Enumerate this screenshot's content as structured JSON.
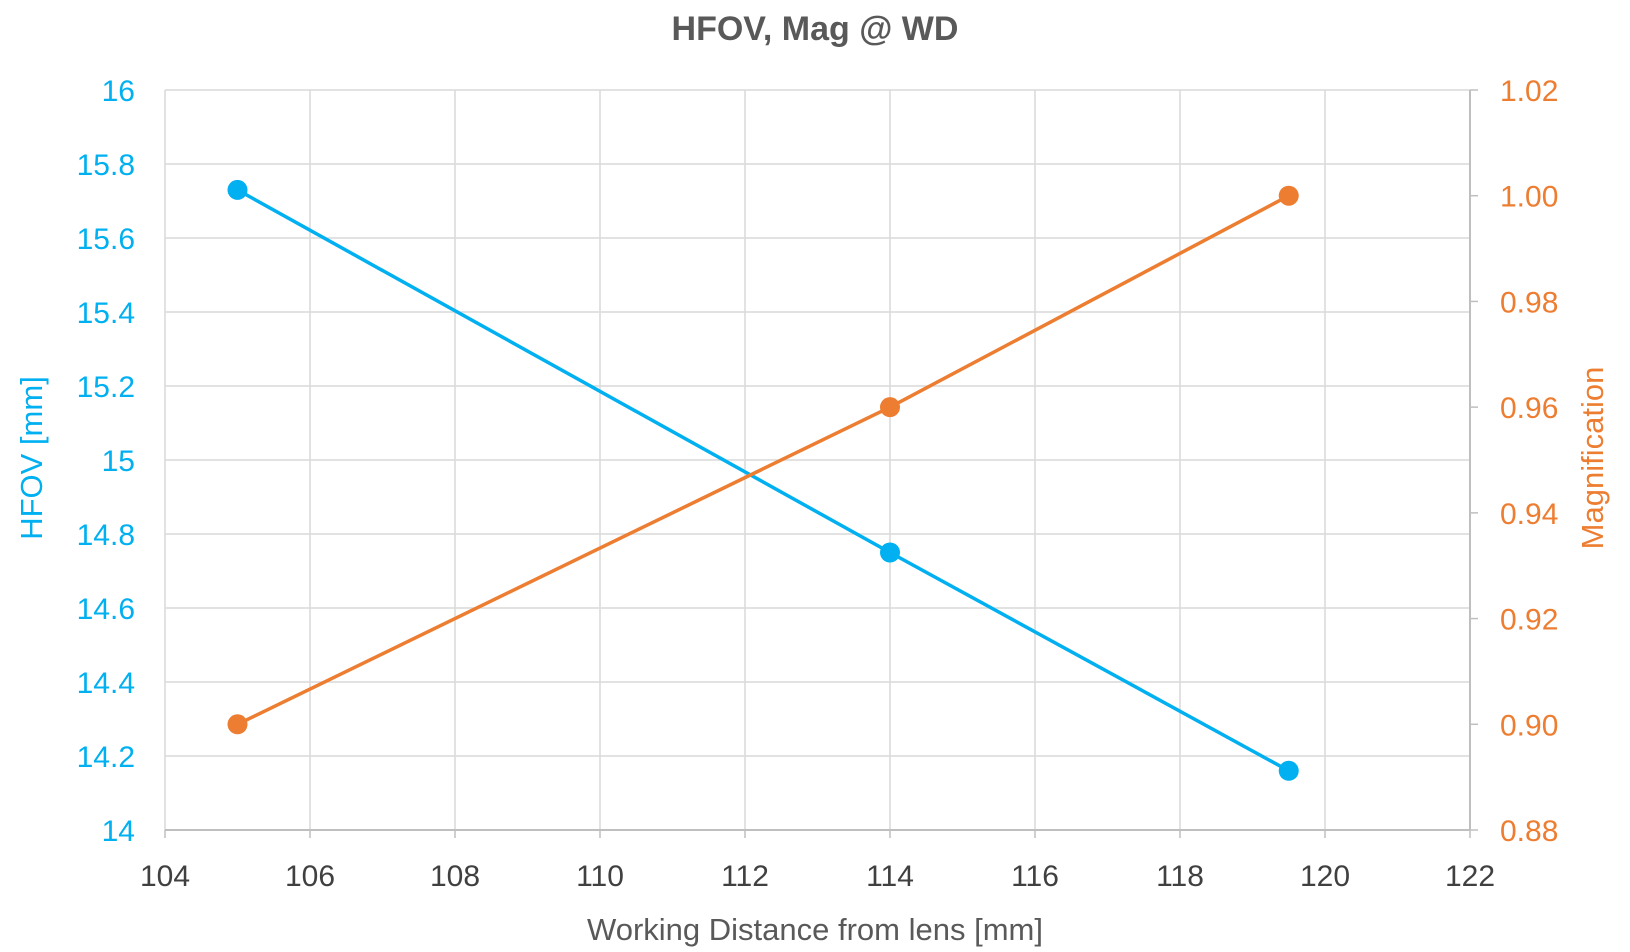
{
  "chart_data": {
    "type": "line",
    "title": "HFOV, Mag @ WD",
    "xlabel": "Working Distance from lens [mm]",
    "ylabel": "HFOV [mm]",
    "y2label": "Magnification",
    "xlim": [
      104,
      122
    ],
    "ylim": [
      14,
      16
    ],
    "y2lim": [
      0.88,
      1.02
    ],
    "x_ticks": [
      "104",
      "106",
      "108",
      "110",
      "112",
      "114",
      "116",
      "118",
      "120",
      "122"
    ],
    "y_ticks": [
      "14",
      "14.2",
      "14.4",
      "14.6",
      "14.8",
      "15",
      "15.2",
      "15.4",
      "15.6",
      "15.8",
      "16"
    ],
    "y2_ticks": [
      "0.88",
      "0.90",
      "0.92",
      "0.94",
      "0.96",
      "0.98",
      "1.00",
      "1.02"
    ],
    "grid": true,
    "series": [
      {
        "axis": "left",
        "color": "#00B0F0",
        "x": [
          105,
          114,
          119.5
        ],
        "y": [
          15.73,
          14.75,
          14.16
        ]
      },
      {
        "axis": "right",
        "color": "#ED7D31",
        "x": [
          105,
          114,
          119.5
        ],
        "y": [
          0.9,
          0.96,
          1.0
        ]
      }
    ]
  }
}
